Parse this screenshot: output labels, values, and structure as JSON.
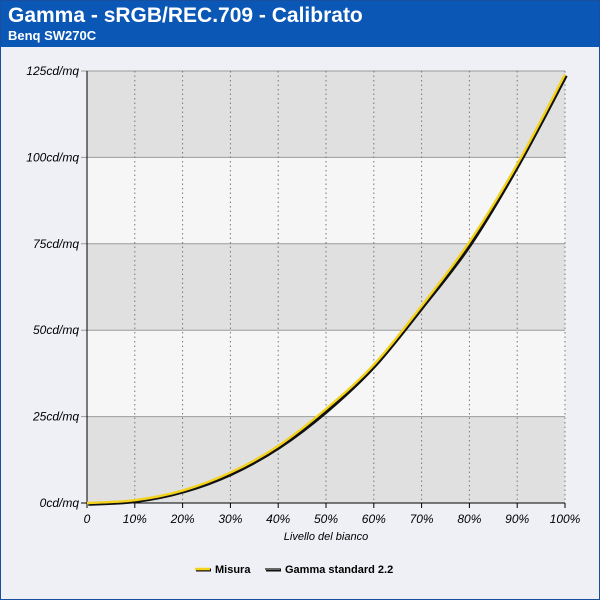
{
  "header": {
    "title": "Gamma - sRGB/REC.709 - Calibrato",
    "subtitle": "Benq SW270C"
  },
  "colors": {
    "header_bg": "#0b57b6",
    "band_dark": "#e0e0e0",
    "band_light": "#f6f6f6",
    "measure": "#f4d21a",
    "standard": "#111111"
  },
  "chart_data": {
    "type": "line",
    "title": "Gamma - sRGB/REC.709 - Calibrato",
    "subtitle": "Benq SW270C",
    "xlabel": "Livello del bianco",
    "ylabel": "",
    "xlim": [
      0,
      100
    ],
    "ylim": [
      0,
      125
    ],
    "x_ticks": [
      0,
      10,
      20,
      30,
      40,
      50,
      60,
      70,
      80,
      90,
      100
    ],
    "x_tick_labels": [
      "0",
      "10%",
      "20%",
      "30%",
      "40%",
      "50%",
      "60%",
      "70%",
      "80%",
      "90%",
      "100%"
    ],
    "y_ticks": [
      0,
      25,
      50,
      75,
      100,
      125
    ],
    "y_tick_labels": [
      "0cd/mq",
      "25cd/mq",
      "50cd/mq",
      "75cd/mq",
      "100cd/mq",
      "125cd/mq"
    ],
    "grid": true,
    "legend_position": "bottom-center",
    "x": [
      0,
      10,
      20,
      30,
      40,
      50,
      60,
      70,
      80,
      90,
      100
    ],
    "series": [
      {
        "name": "Misura",
        "color": "#f4d21a",
        "values": [
          0.0,
          0.8,
          3.6,
          8.8,
          16.5,
          27.2,
          40.0,
          57.0,
          75.5,
          98.0,
          124.0
        ]
      },
      {
        "name": "Gamma standard 2.2",
        "color": "#111111",
        "values": [
          0.0,
          0.8,
          3.6,
          8.7,
          16.4,
          26.9,
          40.0,
          57.0,
          75.1,
          98.0,
          124.0
        ]
      }
    ]
  }
}
